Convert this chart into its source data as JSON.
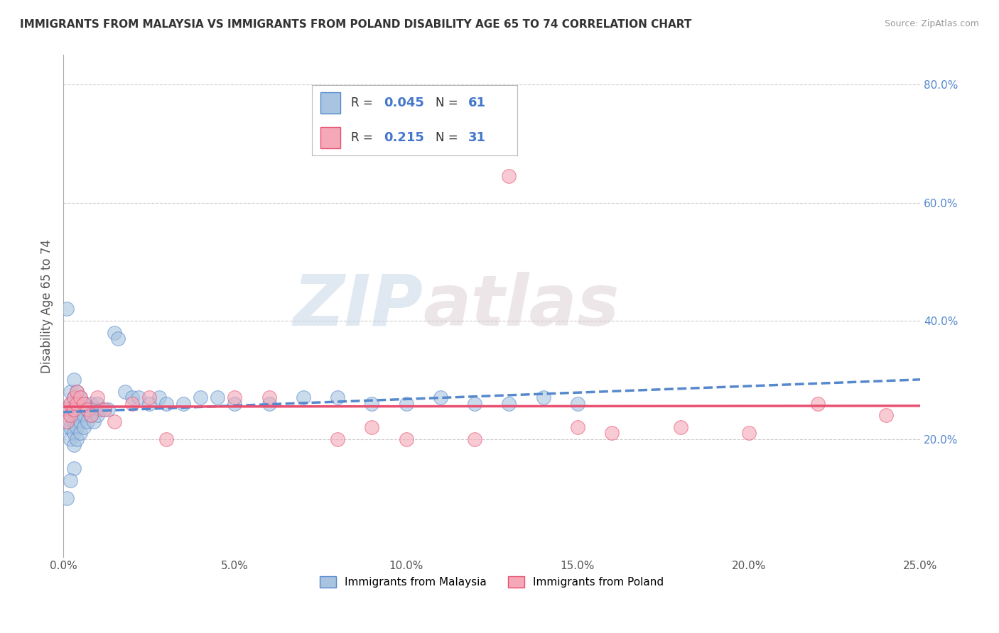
{
  "title": "IMMIGRANTS FROM MALAYSIA VS IMMIGRANTS FROM POLAND DISABILITY AGE 65 TO 74 CORRELATION CHART",
  "source": "Source: ZipAtlas.com",
  "ylabel": "Disability Age 65 to 74",
  "xlim": [
    0.0,
    0.25
  ],
  "ylim": [
    0.0,
    0.85
  ],
  "xtick_labels": [
    "0.0%",
    "5.0%",
    "10.0%",
    "15.0%",
    "20.0%",
    "25.0%"
  ],
  "xtick_vals": [
    0.0,
    0.05,
    0.1,
    0.15,
    0.2,
    0.25
  ],
  "ytick_labels": [
    "20.0%",
    "40.0%",
    "60.0%",
    "80.0%"
  ],
  "ytick_vals": [
    0.2,
    0.4,
    0.6,
    0.8
  ],
  "malaysia_R": 0.045,
  "malaysia_N": 61,
  "poland_R": 0.215,
  "poland_N": 31,
  "malaysia_color": "#a8c4e0",
  "poland_color": "#f4a8b8",
  "malaysia_line_color": "#5588cc",
  "poland_line_color": "#e85070",
  "background_color": "#ffffff",
  "watermark_zip": "ZIP",
  "watermark_atlas": "atlas",
  "legend_text_color": "#4477cc",
  "malaysia_x": [
    0.001,
    0.001,
    0.001,
    0.002,
    0.002,
    0.002,
    0.002,
    0.002,
    0.003,
    0.003,
    0.003,
    0.003,
    0.003,
    0.003,
    0.004,
    0.004,
    0.004,
    0.004,
    0.004,
    0.005,
    0.005,
    0.005,
    0.005,
    0.006,
    0.006,
    0.006,
    0.007,
    0.007,
    0.008,
    0.008,
    0.009,
    0.009,
    0.01,
    0.01,
    0.011,
    0.013,
    0.015,
    0.016,
    0.018,
    0.02,
    0.022,
    0.025,
    0.028,
    0.03,
    0.035,
    0.04,
    0.045,
    0.05,
    0.06,
    0.07,
    0.08,
    0.09,
    0.1,
    0.11,
    0.12,
    0.13,
    0.14,
    0.15,
    0.003,
    0.002,
    0.001
  ],
  "malaysia_y": [
    0.42,
    0.25,
    0.22,
    0.28,
    0.26,
    0.24,
    0.22,
    0.2,
    0.3,
    0.27,
    0.25,
    0.23,
    0.21,
    0.19,
    0.28,
    0.26,
    0.24,
    0.22,
    0.2,
    0.27,
    0.25,
    0.23,
    0.21,
    0.26,
    0.24,
    0.22,
    0.25,
    0.23,
    0.26,
    0.24,
    0.25,
    0.23,
    0.26,
    0.24,
    0.25,
    0.25,
    0.38,
    0.37,
    0.28,
    0.27,
    0.27,
    0.26,
    0.27,
    0.26,
    0.26,
    0.27,
    0.27,
    0.26,
    0.26,
    0.27,
    0.27,
    0.26,
    0.26,
    0.27,
    0.26,
    0.26,
    0.27,
    0.26,
    0.15,
    0.13,
    0.1
  ],
  "poland_x": [
    0.001,
    0.001,
    0.002,
    0.002,
    0.003,
    0.003,
    0.004,
    0.004,
    0.005,
    0.006,
    0.007,
    0.008,
    0.01,
    0.012,
    0.015,
    0.02,
    0.025,
    0.03,
    0.05,
    0.06,
    0.08,
    0.09,
    0.1,
    0.12,
    0.13,
    0.15,
    0.16,
    0.18,
    0.2,
    0.22,
    0.24
  ],
  "poland_y": [
    0.25,
    0.23,
    0.26,
    0.24,
    0.27,
    0.25,
    0.28,
    0.26,
    0.27,
    0.26,
    0.25,
    0.24,
    0.27,
    0.25,
    0.23,
    0.26,
    0.27,
    0.2,
    0.27,
    0.27,
    0.2,
    0.22,
    0.2,
    0.2,
    0.645,
    0.22,
    0.21,
    0.22,
    0.21,
    0.26,
    0.24
  ]
}
